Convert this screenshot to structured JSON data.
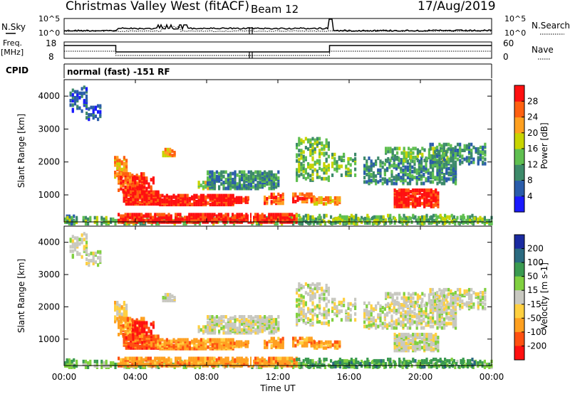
{
  "header": {
    "station": "Christmas Valley West (fitACF)",
    "beam": "Beam 12",
    "date": "17/Aug/2019"
  },
  "panels": {
    "nsky_label": "N.Sky",
    "nsky_top_tick": "10^5",
    "nsky_bottom_tick": "10^0",
    "nsearch_label": "N.Search",
    "freq_label": "Freq.",
    "freq_unit": "[MHz]",
    "freq_top_tick": "18",
    "freq_bottom_tick": "8",
    "nave_label": "Nave",
    "nave_top_tick": "60",
    "nave_bottom_tick": "0",
    "cpid_label": "CPID",
    "cpid_text": "normal (fast) -151 RF"
  },
  "chart_data": [
    {
      "type": "heatmap",
      "parameter": "Power",
      "ylabel": "Slant Range [km]",
      "xlabel": "Time UT",
      "x_ticks": [
        "00:00",
        "04:00",
        "08:00",
        "12:00",
        "16:00",
        "20:00",
        "00:00"
      ],
      "y_ticks": [
        1000,
        2000,
        3000,
        4000
      ],
      "xlim": [
        0,
        24
      ],
      "ylim": [
        180,
        4500
      ],
      "colorbar": {
        "label": "Power [dB]",
        "ticks": [
          "4",
          "8",
          "12",
          "16",
          "20",
          "24",
          "28"
        ],
        "colors": [
          "#1a1aff",
          "#2a5caa",
          "#3d8a6a",
          "#5fbf50",
          "#c8d400",
          "#ffa020",
          "#ff6010",
          "#ff1010"
        ]
      }
    },
    {
      "type": "heatmap",
      "parameter": "Velocity",
      "ylabel": "Slant Range [km]",
      "xlabel": "Time UT",
      "x_ticks": [
        "00:00",
        "04:00",
        "08:00",
        "12:00",
        "16:00",
        "20:00",
        "00:00"
      ],
      "y_ticks": [
        1000,
        2000,
        3000,
        4000
      ],
      "xlim": [
        0,
        24
      ],
      "ylim": [
        180,
        4500
      ],
      "colorbar": {
        "label": "Velocity [m s-1]",
        "ticks": [
          "200",
          "100",
          "50",
          "15",
          "-15",
          "-50",
          "-100",
          "-200"
        ],
        "colors": [
          "#1a2aa0",
          "#2a6a80",
          "#3a9a50",
          "#80d040",
          "#c8c8c0",
          "#ffd040",
          "#ffa020",
          "#ff5010",
          "#ff1010"
        ]
      }
    }
  ],
  "xaxis": {
    "label": "Time UT",
    "ticks": [
      "00:00",
      "04:00",
      "08:00",
      "12:00",
      "16:00",
      "20:00",
      "00:00"
    ]
  }
}
